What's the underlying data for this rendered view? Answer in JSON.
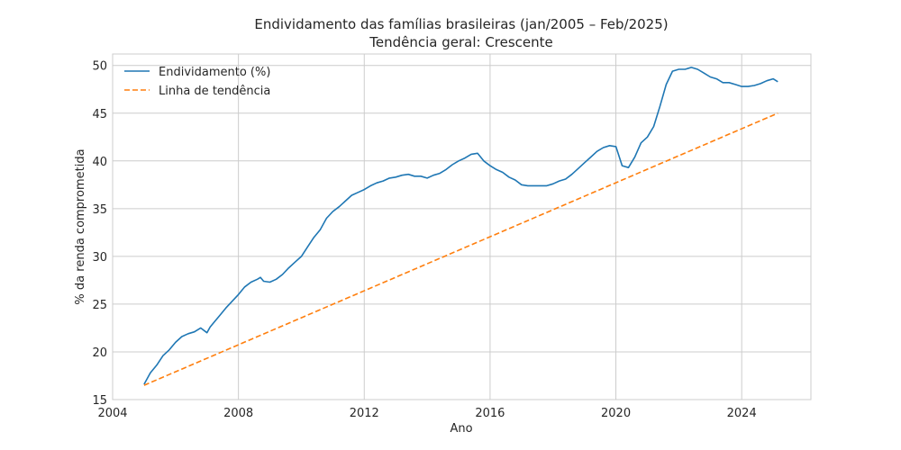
{
  "chart_data": {
    "type": "line",
    "title": "Endividamento das famílias brasileiras (jan/2005 – Feb/2025)",
    "subtitle": "Tendência geral: Crescente",
    "xlabel": "Ano",
    "ylabel": "% da renda comprometida",
    "xlim": [
      2004.0,
      2026.2
    ],
    "ylim": [
      15,
      51.2
    ],
    "x_ticks": [
      "2004",
      "2008",
      "2012",
      "2016",
      "2020",
      "2024"
    ],
    "y_ticks": [
      "15",
      "20",
      "25",
      "30",
      "35",
      "40",
      "45",
      "50"
    ],
    "grid": true,
    "legend_position": "top-left",
    "series": [
      {
        "name": "Endividamento (%)",
        "color": "#1f77b4",
        "style": "solid",
        "x": [
          2005.0,
          2005.2,
          2005.4,
          2005.6,
          2005.8,
          2006.0,
          2006.2,
          2006.4,
          2006.6,
          2006.8,
          2007.0,
          2007.1,
          2007.2,
          2007.4,
          2007.6,
          2007.8,
          2008.0,
          2008.2,
          2008.4,
          2008.6,
          2008.7,
          2008.8,
          2009.0,
          2009.2,
          2009.4,
          2009.6,
          2009.8,
          2010.0,
          2010.2,
          2010.4,
          2010.6,
          2010.8,
          2011.0,
          2011.2,
          2011.4,
          2011.6,
          2011.8,
          2012.0,
          2012.2,
          2012.4,
          2012.6,
          2012.8,
          2013.0,
          2013.2,
          2013.4,
          2013.6,
          2013.8,
          2014.0,
          2014.2,
          2014.4,
          2014.6,
          2014.8,
          2015.0,
          2015.2,
          2015.4,
          2015.6,
          2015.8,
          2016.0,
          2016.2,
          2016.4,
          2016.6,
          2016.8,
          2017.0,
          2017.2,
          2017.4,
          2017.6,
          2017.8,
          2018.0,
          2018.2,
          2018.4,
          2018.6,
          2018.8,
          2019.0,
          2019.2,
          2019.4,
          2019.6,
          2019.8,
          2020.0,
          2020.2,
          2020.4,
          2020.6,
          2020.8,
          2021.0,
          2021.2,
          2021.4,
          2021.6,
          2021.8,
          2022.0,
          2022.2,
          2022.4,
          2022.6,
          2022.8,
          2023.0,
          2023.2,
          2023.4,
          2023.6,
          2023.8,
          2024.0,
          2024.2,
          2024.4,
          2024.6,
          2024.8,
          2025.0,
          2025.15
        ],
        "y": [
          16.6,
          17.8,
          18.6,
          19.6,
          20.2,
          21.0,
          21.6,
          21.9,
          22.1,
          22.5,
          22.0,
          22.6,
          23.0,
          23.8,
          24.6,
          25.3,
          26.0,
          26.8,
          27.3,
          27.6,
          27.8,
          27.4,
          27.3,
          27.6,
          28.1,
          28.8,
          29.4,
          30.0,
          31.0,
          32.0,
          32.8,
          34.0,
          34.7,
          35.2,
          35.8,
          36.4,
          36.7,
          37.0,
          37.4,
          37.7,
          37.9,
          38.2,
          38.3,
          38.5,
          38.6,
          38.4,
          38.4,
          38.2,
          38.5,
          38.7,
          39.1,
          39.6,
          40.0,
          40.3,
          40.7,
          40.8,
          40.0,
          39.5,
          39.1,
          38.8,
          38.3,
          38.0,
          37.5,
          37.4,
          37.4,
          37.4,
          37.4,
          37.6,
          37.9,
          38.1,
          38.6,
          39.2,
          39.8,
          40.4,
          41.0,
          41.4,
          41.6,
          41.5,
          39.5,
          39.3,
          40.4,
          41.9,
          42.5,
          43.6,
          45.7,
          48.0,
          49.4,
          49.6,
          49.6,
          49.8,
          49.6,
          49.2,
          48.8,
          48.6,
          48.2,
          48.2,
          48.0,
          47.8,
          47.8,
          47.9,
          48.1,
          48.4,
          48.6,
          48.3
        ]
      },
      {
        "name": "Linha de tendência",
        "color": "#ff7f0e",
        "style": "dashed",
        "x": [
          2005.0,
          2025.15
        ],
        "y": [
          16.5,
          45.0
        ]
      }
    ]
  }
}
